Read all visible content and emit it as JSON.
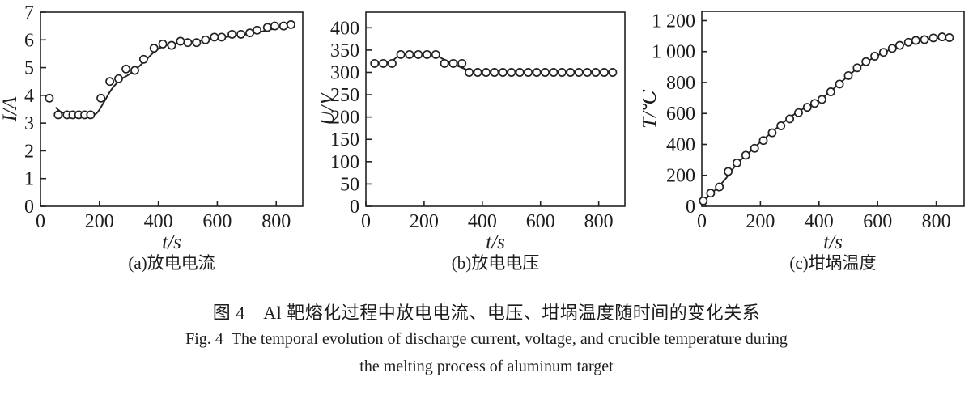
{
  "figure": {
    "caption_zh": "图 4 Al 靶熔化过程中放电电流、电压、坩埚温度随时间的变化关系",
    "caption_en_line1": "Fig. 4 The temporal evolution of discharge current, voltage, and crucible temperature during",
    "caption_en_line2": "the melting process of aluminum target"
  },
  "colors": {
    "ink": "#222222",
    "background": "#ffffff",
    "marker_fill": "#ffffff"
  },
  "chart_data": [
    {
      "id": "a",
      "type": "scatter",
      "title": "(a)放电电流",
      "xlabel": "t/s",
      "ylabel": "I/A",
      "xlim": [
        0,
        890
      ],
      "ylim": [
        0,
        7
      ],
      "xticks": [
        0,
        200,
        400,
        600,
        800
      ],
      "xtick_labels": [
        "0",
        "200",
        "400",
        "600",
        "800"
      ],
      "yticks": [
        0,
        1,
        2,
        3,
        4,
        5,
        6,
        7
      ],
      "ytick_labels": [
        "0",
        "1",
        "2",
        "3",
        "4",
        "5",
        "6",
        "7"
      ],
      "grid": false,
      "legend": null,
      "points": {
        "t": [
          30,
          60,
          90,
          110,
          130,
          150,
          170,
          205,
          235,
          265,
          290,
          320,
          350,
          385,
          415,
          445,
          475,
          500,
          530,
          560,
          590,
          615,
          650,
          680,
          710,
          735,
          770,
          795,
          825,
          850
        ],
        "v": [
          3.9,
          3.3,
          3.3,
          3.3,
          3.3,
          3.3,
          3.3,
          3.9,
          4.5,
          4.6,
          4.95,
          4.9,
          5.3,
          5.7,
          5.85,
          5.8,
          5.95,
          5.9,
          5.9,
          6.0,
          6.1,
          6.1,
          6.2,
          6.2,
          6.25,
          6.35,
          6.45,
          6.5,
          6.5,
          6.55
        ]
      },
      "fit_line": {
        "t": [
          53,
          70,
          95,
          130,
          165,
          190,
          215,
          240,
          270,
          300,
          330,
          360,
          390,
          420,
          460,
          500,
          550,
          600,
          650,
          700,
          750,
          800,
          850
        ],
        "v": [
          3.55,
          3.4,
          3.32,
          3.3,
          3.3,
          3.35,
          3.75,
          4.2,
          4.55,
          4.75,
          5.0,
          5.3,
          5.6,
          5.78,
          5.87,
          5.92,
          5.98,
          6.06,
          6.13,
          6.2,
          6.3,
          6.42,
          6.53
        ]
      }
    },
    {
      "id": "b",
      "type": "scatter",
      "title": "(b)放电电压",
      "xlabel": "t/s",
      "ylabel": "U/V",
      "xlim": [
        0,
        890
      ],
      "ylim": [
        0,
        435
      ],
      "xticks": [
        0,
        200,
        400,
        600,
        800
      ],
      "xtick_labels": [
        "0",
        "200",
        "400",
        "600",
        "800"
      ],
      "yticks": [
        0,
        50,
        100,
        150,
        200,
        250,
        300,
        350,
        400
      ],
      "ytick_labels": [
        "0",
        "50",
        "100",
        "150",
        "200",
        "250",
        "300",
        "350",
        "400"
      ],
      "grid": false,
      "legend": null,
      "points": {
        "t": [
          30,
          60,
          90,
          120,
          150,
          180,
          210,
          240,
          270,
          300,
          330,
          355,
          384,
          413,
          442,
          471,
          500,
          529,
          558,
          587,
          616,
          645,
          674,
          703,
          732,
          761,
          790,
          819,
          848
        ],
        "v": [
          320,
          320,
          320,
          340,
          340,
          340,
          340,
          340,
          320,
          320,
          320,
          300,
          300,
          300,
          300,
          300,
          300,
          300,
          300,
          300,
          300,
          300,
          300,
          300,
          300,
          300,
          300,
          300,
          300
        ]
      },
      "fit_line": {
        "t": [
          55,
          85,
          115,
          140,
          170,
          205,
          240,
          265,
          300,
          335,
          370,
          400,
          450,
          550,
          650,
          750,
          848
        ],
        "v": [
          320,
          324,
          338,
          341,
          341,
          341,
          338,
          330,
          319,
          309,
          301,
          300,
          300,
          300,
          300,
          300,
          300
        ]
      }
    },
    {
      "id": "c",
      "type": "scatter",
      "title": "(c)坩埚温度",
      "xlabel": "t/s",
      "ylabel": "T/℃",
      "xlim": [
        0,
        895
      ],
      "ylim": [
        0,
        1260
      ],
      "xticks": [
        0,
        200,
        400,
        600,
        800
      ],
      "xtick_labels": [
        "0",
        "200",
        "400",
        "600",
        "800"
      ],
      "yticks": [
        0,
        200,
        400,
        600,
        800,
        1000,
        1200
      ],
      "ytick_labels": [
        "0",
        "200",
        "400",
        "600",
        "800",
        "1 000",
        "1 200"
      ],
      "grid": false,
      "legend": null,
      "points": {
        "t": [
          5,
          30,
          60,
          90,
          120,
          150,
          180,
          210,
          240,
          270,
          300,
          330,
          360,
          385,
          410,
          440,
          470,
          500,
          530,
          560,
          590,
          620,
          650,
          675,
          705,
          730,
          760,
          790,
          820,
          845
        ],
        "v": [
          35,
          85,
          125,
          225,
          280,
          330,
          375,
          425,
          475,
          520,
          565,
          605,
          640,
          665,
          690,
          740,
          790,
          845,
          895,
          935,
          970,
          995,
          1020,
          1040,
          1060,
          1072,
          1077,
          1088,
          1095,
          1090
        ]
      },
      "fit_line": {
        "t": [
          0,
          40,
          80,
          120,
          160,
          200,
          240,
          280,
          320,
          360,
          400,
          440,
          480,
          520,
          560,
          600,
          640,
          680,
          720,
          760,
          800,
          845
        ],
        "v": [
          25,
          95,
          175,
          275,
          345,
          415,
          480,
          545,
          600,
          645,
          685,
          745,
          810,
          875,
          930,
          975,
          1010,
          1040,
          1062,
          1077,
          1087,
          1093
        ]
      }
    }
  ]
}
